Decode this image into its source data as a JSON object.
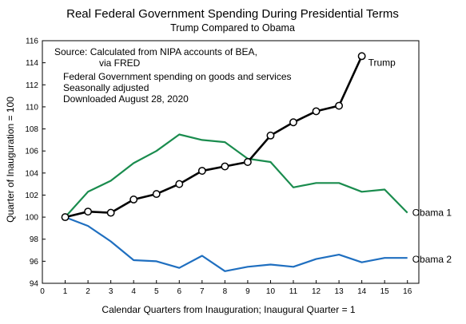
{
  "chart_data": {
    "type": "line",
    "title": "Real Federal Government Spending During Presidential Terms",
    "subtitle": "Trump Compared to Obama",
    "xlabel": "Calendar Quarters from Inauguration; Inaugural Quarter = 1",
    "ylabel": "Quarter of Inauguration = 100",
    "xlim": [
      0,
      16.5
    ],
    "ylim": [
      94,
      116
    ],
    "xticks": [
      0,
      1,
      2,
      3,
      4,
      5,
      6,
      7,
      8,
      9,
      10,
      11,
      12,
      13,
      14,
      15,
      16
    ],
    "yticks": [
      94,
      96,
      98,
      100,
      102,
      104,
      106,
      108,
      110,
      112,
      114,
      116
    ],
    "grid": false,
    "annotations": [
      "Source:  Calculated from NIPA accounts of BEA,",
      "via FRED",
      "Federal Government spending on goods and services",
      "Seasonally adjusted",
      "Downloaded August 28, 2020"
    ],
    "series": [
      {
        "name": "Trump",
        "color": "#000000",
        "markers": true,
        "x": [
          1,
          2,
          3,
          4,
          5,
          6,
          7,
          8,
          9,
          10,
          11,
          12,
          13,
          14
        ],
        "values": [
          100.0,
          100.5,
          100.4,
          101.6,
          102.1,
          103.0,
          104.2,
          104.6,
          105.0,
          107.4,
          108.6,
          109.6,
          110.1,
          114.6
        ]
      },
      {
        "name": "Obama 1",
        "color": "#1a8c4e",
        "markers": false,
        "x": [
          1,
          2,
          3,
          4,
          5,
          6,
          7,
          8,
          9,
          10,
          11,
          12,
          13,
          14,
          15,
          16
        ],
        "values": [
          100.0,
          102.3,
          103.3,
          104.9,
          106.0,
          107.5,
          107.0,
          106.8,
          105.3,
          105.0,
          102.7,
          103.1,
          103.1,
          102.3,
          102.5,
          100.4
        ]
      },
      {
        "name": "Obama 2",
        "color": "#1f6fc0",
        "markers": false,
        "x": [
          1,
          2,
          3,
          4,
          5,
          6,
          7,
          8,
          9,
          10,
          11,
          12,
          13,
          14,
          15,
          16
        ],
        "values": [
          100.0,
          99.2,
          97.8,
          96.1,
          96.0,
          95.4,
          96.5,
          95.1,
          95.5,
          95.7,
          95.5,
          96.2,
          96.6,
          95.9,
          96.3,
          96.3
        ]
      }
    ]
  }
}
